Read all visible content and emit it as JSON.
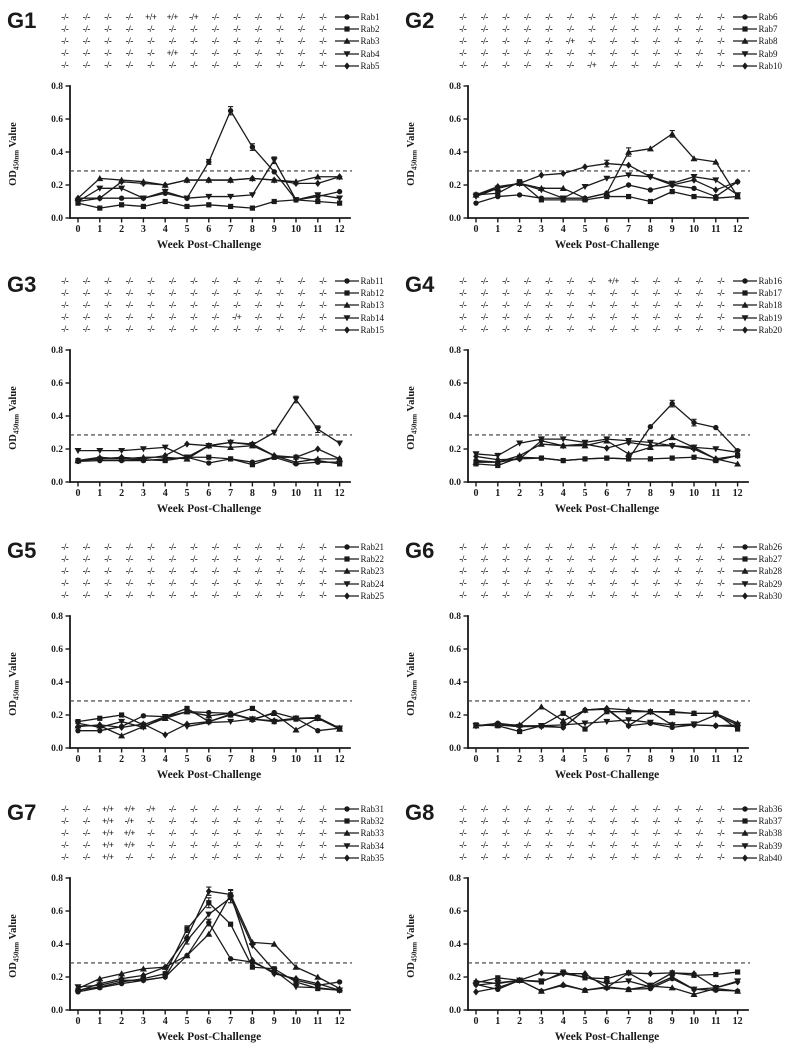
{
  "figure": {
    "background": "#ffffff",
    "ink": "#1a1a1a",
    "xlabel": "Week Post-Challenge",
    "ylabel_prefix": "OD",
    "ylabel_sub": "450nm",
    "ylabel_suffix": " Value",
    "ylim": [
      0,
      0.8
    ],
    "ytick_labels": [
      "0.0",
      "0.2",
      "0.4",
      "0.6",
      "0.8"
    ],
    "xtick_labels": [
      "0",
      "1",
      "2",
      "3",
      "4",
      "5",
      "6",
      "7",
      "8",
      "9",
      "10",
      "11",
      "12"
    ],
    "threshold": 0.285,
    "status_default": "-/-",
    "weeks": 13,
    "grid": "off",
    "legend_position": "right-of-status-rows"
  },
  "chart_data": [
    {
      "type": "line",
      "panel": "G1",
      "x": [
        0,
        1,
        2,
        3,
        4,
        5,
        6,
        7,
        8,
        9,
        10,
        11,
        12
      ],
      "series": [
        {
          "name": "Rab1",
          "marker": "circle",
          "status_marks": {
            "4": "+/+",
            "5": "+/+",
            "6": "-/+"
          },
          "values": [
            0.1,
            0.12,
            0.12,
            0.12,
            0.15,
            0.12,
            0.34,
            0.65,
            0.43,
            0.28,
            0.11,
            0.13,
            0.16
          ],
          "errors": {
            "6": 0.015,
            "7": 0.025,
            "8": 0.02
          }
        },
        {
          "name": "Rab2",
          "marker": "square",
          "status_marks": {},
          "values": [
            0.09,
            0.06,
            0.08,
            0.07,
            0.1,
            0.07,
            0.08,
            0.07,
            0.06,
            0.1,
            0.11,
            0.1,
            0.09
          ],
          "errors": {}
        },
        {
          "name": "Rab3",
          "marker": "triangle",
          "status_marks": {},
          "values": [
            0.12,
            0.24,
            0.23,
            0.22,
            0.2,
            0.23,
            0.23,
            0.23,
            0.24,
            0.23,
            0.22,
            0.25,
            0.25
          ],
          "errors": {}
        },
        {
          "name": "Rab4",
          "marker": "triangle-down",
          "status_marks": {
            "5": "+/+"
          },
          "values": [
            0.1,
            0.18,
            0.18,
            0.12,
            0.16,
            0.12,
            0.13,
            0.13,
            0.14,
            0.35,
            0.11,
            0.14,
            0.12
          ],
          "errors": {
            "9": 0.02
          }
        },
        {
          "name": "Rab5",
          "marker": "diamond",
          "status_marks": {},
          "values": [
            0.12,
            0.12,
            0.22,
            0.21,
            0.2,
            0.23,
            0.23,
            0.23,
            0.24,
            0.23,
            0.21,
            0.21,
            0.25
          ],
          "errors": {}
        }
      ]
    },
    {
      "type": "line",
      "panel": "G2",
      "x": [
        0,
        1,
        2,
        3,
        4,
        5,
        6,
        7,
        8,
        9,
        10,
        11,
        12
      ],
      "series": [
        {
          "name": "Rab6",
          "marker": "circle",
          "status_marks": {},
          "values": [
            0.09,
            0.13,
            0.14,
            0.12,
            0.12,
            0.12,
            0.15,
            0.2,
            0.17,
            0.2,
            0.18,
            0.13,
            0.22
          ],
          "errors": {}
        },
        {
          "name": "Rab7",
          "marker": "square",
          "status_marks": {},
          "values": [
            0.14,
            0.15,
            0.22,
            0.11,
            0.11,
            0.11,
            0.13,
            0.13,
            0.1,
            0.16,
            0.13,
            0.12,
            0.13
          ],
          "errors": {}
        },
        {
          "name": "Rab8",
          "marker": "triangle",
          "status_marks": {
            "5": "-/+"
          },
          "values": [
            0.14,
            0.18,
            0.21,
            0.18,
            0.18,
            0.12,
            0.15,
            0.4,
            0.42,
            0.51,
            0.36,
            0.34,
            0.13
          ],
          "errors": {
            "7": 0.025,
            "9": 0.02
          }
        },
        {
          "name": "Rab9",
          "marker": "triangle-down",
          "status_marks": {},
          "values": [
            0.13,
            0.18,
            0.21,
            0.17,
            0.12,
            0.19,
            0.24,
            0.26,
            0.25,
            0.21,
            0.25,
            0.23,
            0.14
          ],
          "errors": {}
        },
        {
          "name": "Rab10",
          "marker": "diamond",
          "status_marks": {
            "6": "-/+"
          },
          "values": [
            0.14,
            0.19,
            0.21,
            0.26,
            0.27,
            0.31,
            0.33,
            0.32,
            0.25,
            0.2,
            0.23,
            0.17,
            0.22
          ],
          "errors": {
            "6": 0.02
          }
        }
      ]
    },
    {
      "type": "line",
      "panel": "G3",
      "x": [
        0,
        1,
        2,
        3,
        4,
        5,
        6,
        7,
        8,
        9,
        10,
        11,
        12
      ],
      "series": [
        {
          "name": "Rab11",
          "marker": "circle",
          "status_marks": {},
          "values": [
            0.125,
            0.13,
            0.13,
            0.13,
            0.14,
            0.15,
            0.115,
            0.14,
            0.12,
            0.15,
            0.11,
            0.12,
            0.12
          ],
          "errors": {}
        },
        {
          "name": "Rab12",
          "marker": "square",
          "status_marks": {},
          "values": [
            0.13,
            0.14,
            0.14,
            0.135,
            0.13,
            0.15,
            0.15,
            0.14,
            0.105,
            0.15,
            0.15,
            0.13,
            0.11
          ],
          "errors": {}
        },
        {
          "name": "Rab13",
          "marker": "triangle",
          "status_marks": {},
          "values": [
            0.13,
            0.15,
            0.14,
            0.15,
            0.15,
            0.14,
            0.22,
            0.21,
            0.22,
            0.16,
            0.12,
            0.14,
            0.14
          ],
          "errors": {}
        },
        {
          "name": "Rab14",
          "marker": "triangle-down",
          "status_marks": {
            "8": "-/+"
          },
          "values": [
            0.19,
            0.19,
            0.19,
            0.2,
            0.21,
            0.15,
            0.22,
            0.24,
            0.225,
            0.3,
            0.5,
            0.32,
            0.235
          ],
          "errors": {
            "10": 0.02,
            "11": 0.02
          }
        },
        {
          "name": "Rab15",
          "marker": "diamond",
          "status_marks": {},
          "values": [
            0.13,
            0.14,
            0.15,
            0.14,
            0.16,
            0.23,
            0.22,
            0.24,
            0.23,
            0.16,
            0.15,
            0.2,
            0.14
          ],
          "errors": {}
        }
      ]
    },
    {
      "type": "line",
      "panel": "G4",
      "x": [
        0,
        1,
        2,
        3,
        4,
        5,
        6,
        7,
        8,
        9,
        10,
        11,
        12
      ],
      "series": [
        {
          "name": "Rab16",
          "marker": "circle",
          "status_marks": {
            "7": "+/+"
          },
          "values": [
            0.13,
            0.12,
            0.14,
            0.145,
            0.13,
            0.14,
            0.145,
            0.14,
            0.335,
            0.475,
            0.36,
            0.33,
            0.19
          ],
          "errors": {
            "9": 0.02,
            "10": 0.02
          }
        },
        {
          "name": "Rab17",
          "marker": "square",
          "status_marks": {},
          "values": [
            0.11,
            0.1,
            0.15,
            0.145,
            0.13,
            0.14,
            0.145,
            0.14,
            0.14,
            0.145,
            0.15,
            0.13,
            0.16
          ],
          "errors": {}
        },
        {
          "name": "Rab18",
          "marker": "triangle",
          "status_marks": {},
          "values": [
            0.12,
            0.12,
            0.16,
            0.23,
            0.22,
            0.22,
            0.25,
            0.17,
            0.21,
            0.27,
            0.21,
            0.14,
            0.11
          ],
          "errors": {}
        },
        {
          "name": "Rab19",
          "marker": "triangle-down",
          "status_marks": {},
          "values": [
            0.17,
            0.16,
            0.235,
            0.26,
            0.26,
            0.24,
            0.26,
            0.25,
            0.24,
            0.22,
            0.21,
            0.2,
            0.18
          ],
          "errors": {}
        },
        {
          "name": "Rab20",
          "marker": "diamond",
          "status_marks": {},
          "values": [
            0.155,
            0.135,
            0.14,
            0.25,
            0.22,
            0.23,
            0.205,
            0.24,
            0.22,
            0.22,
            0.2,
            0.14,
            0.16
          ],
          "errors": {}
        }
      ]
    },
    {
      "type": "line",
      "panel": "G5",
      "x": [
        0,
        1,
        2,
        3,
        4,
        5,
        6,
        7,
        8,
        9,
        10,
        11,
        12
      ],
      "series": [
        {
          "name": "Rab21",
          "marker": "circle",
          "status_marks": {},
          "values": [
            0.105,
            0.105,
            0.13,
            0.195,
            0.19,
            0.22,
            0.215,
            0.21,
            0.17,
            0.215,
            0.18,
            0.105,
            0.12
          ],
          "errors": {}
        },
        {
          "name": "Rab22",
          "marker": "square",
          "status_marks": {},
          "values": [
            0.16,
            0.18,
            0.2,
            0.14,
            0.19,
            0.24,
            0.16,
            0.2,
            0.24,
            0.16,
            0.175,
            0.185,
            0.12
          ],
          "errors": {}
        },
        {
          "name": "Rab23",
          "marker": "triangle",
          "status_marks": {},
          "values": [
            0.135,
            0.135,
            0.075,
            0.13,
            0.18,
            0.22,
            0.195,
            0.21,
            0.175,
            0.21,
            0.11,
            0.18,
            0.115
          ],
          "errors": {}
        },
        {
          "name": "Rab24",
          "marker": "triangle-down",
          "status_marks": {},
          "values": [
            0.15,
            0.125,
            0.16,
            0.125,
            0.19,
            0.13,
            0.155,
            0.16,
            0.175,
            0.16,
            0.18,
            0.18,
            0.12
          ],
          "errors": {}
        },
        {
          "name": "Rab25",
          "marker": "diamond",
          "status_marks": {},
          "values": [
            0.13,
            0.14,
            0.125,
            0.145,
            0.08,
            0.145,
            0.16,
            0.205,
            0.175,
            0.165,
            0.18,
            0.185,
            0.12
          ],
          "errors": {}
        }
      ]
    },
    {
      "type": "line",
      "panel": "G6",
      "x": [
        0,
        1,
        2,
        3,
        4,
        5,
        6,
        7,
        8,
        9,
        10,
        11,
        12
      ],
      "series": [
        {
          "name": "Rab26",
          "marker": "circle",
          "status_marks": {},
          "values": [
            0.135,
            0.15,
            0.135,
            0.135,
            0.125,
            0.23,
            0.235,
            0.135,
            0.15,
            0.125,
            0.14,
            0.135,
            0.14
          ],
          "errors": {}
        },
        {
          "name": "Rab27",
          "marker": "square",
          "status_marks": {},
          "values": [
            0.14,
            0.135,
            0.1,
            0.135,
            0.21,
            0.115,
            0.22,
            0.22,
            0.22,
            0.22,
            0.21,
            0.21,
            0.115
          ],
          "errors": {}
        },
        {
          "name": "Rab28",
          "marker": "triangle",
          "status_marks": {},
          "values": [
            0.135,
            0.14,
            0.14,
            0.25,
            0.165,
            0.23,
            0.24,
            0.23,
            0.22,
            0.215,
            0.21,
            0.21,
            0.15
          ],
          "errors": {}
        },
        {
          "name": "Rab29",
          "marker": "triangle-down",
          "status_marks": {},
          "values": [
            0.135,
            0.14,
            0.13,
            0.135,
            0.14,
            0.15,
            0.16,
            0.17,
            0.155,
            0.14,
            0.145,
            0.2,
            0.14
          ],
          "errors": {}
        },
        {
          "name": "Rab30",
          "marker": "diamond",
          "status_marks": {},
          "values": [
            0.135,
            0.14,
            0.13,
            0.13,
            0.125,
            0.23,
            0.24,
            0.135,
            0.22,
            0.14,
            0.14,
            0.135,
            0.13
          ],
          "errors": {}
        }
      ]
    },
    {
      "type": "line",
      "panel": "G7",
      "x": [
        0,
        1,
        2,
        3,
        4,
        5,
        6,
        7,
        8,
        9,
        10,
        11,
        12
      ],
      "series": [
        {
          "name": "Rab31",
          "marker": "circle",
          "status_marks": {
            "2": "+/+",
            "3": "+/+",
            "4": "-/+"
          },
          "values": [
            0.11,
            0.135,
            0.16,
            0.18,
            0.2,
            0.33,
            0.53,
            0.31,
            0.29,
            0.23,
            0.18,
            0.15,
            0.17
          ],
          "errors": {
            "6": 0.02
          }
        },
        {
          "name": "Rab32",
          "marker": "square",
          "status_marks": {
            "2": "+/+",
            "3": "-/+"
          },
          "values": [
            0.12,
            0.14,
            0.17,
            0.19,
            0.22,
            0.49,
            0.65,
            0.52,
            0.26,
            0.25,
            0.17,
            0.13,
            0.12
          ],
          "errors": {
            "5": 0.02,
            "6": 0.03
          }
        },
        {
          "name": "Rab33",
          "marker": "triangle",
          "status_marks": {
            "2": "+/+",
            "3": "+/+"
          },
          "values": [
            0.13,
            0.19,
            0.22,
            0.25,
            0.26,
            0.33,
            0.46,
            0.7,
            0.41,
            0.4,
            0.26,
            0.2,
            0.13
          ],
          "errors": {
            "7": 0.03
          }
        },
        {
          "name": "Rab34",
          "marker": "triangle-down",
          "status_marks": {
            "2": "+/+",
            "3": "+/+"
          },
          "values": [
            0.14,
            0.15,
            0.18,
            0.18,
            0.2,
            0.42,
            0.58,
            0.68,
            0.39,
            0.24,
            0.14,
            0.135,
            0.12
          ],
          "errors": {
            "5": 0.02,
            "7": 0.03
          }
        },
        {
          "name": "Rab35",
          "marker": "diamond",
          "status_marks": {
            "2": "+/+"
          },
          "values": [
            0.115,
            0.16,
            0.19,
            0.21,
            0.26,
            0.44,
            0.72,
            0.7,
            0.3,
            0.22,
            0.19,
            0.16,
            0.12
          ],
          "errors": {
            "6": 0.025,
            "7": 0.025
          }
        }
      ]
    },
    {
      "type": "line",
      "panel": "G8",
      "x": [
        0,
        1,
        2,
        3,
        4,
        5,
        6,
        7,
        8,
        9,
        10,
        11,
        12
      ],
      "series": [
        {
          "name": "Rab36",
          "marker": "circle",
          "status_marks": {},
          "values": [
            0.155,
            0.125,
            0.18,
            0.115,
            0.15,
            0.12,
            0.135,
            0.125,
            0.13,
            0.19,
            0.125,
            0.12,
            0.115
          ],
          "errors": {}
        },
        {
          "name": "Rab37",
          "marker": "square",
          "status_marks": {},
          "values": [
            0.165,
            0.195,
            0.18,
            0.17,
            0.23,
            0.195,
            0.19,
            0.225,
            0.15,
            0.225,
            0.21,
            0.215,
            0.23
          ],
          "errors": {}
        },
        {
          "name": "Rab38",
          "marker": "triangle",
          "status_marks": {},
          "values": [
            0.175,
            0.16,
            0.18,
            0.115,
            0.155,
            0.12,
            0.14,
            0.125,
            0.145,
            0.135,
            0.095,
            0.13,
            0.115
          ],
          "errors": {}
        },
        {
          "name": "Rab39",
          "marker": "triangle-down",
          "status_marks": {},
          "values": [
            0.15,
            0.165,
            0.18,
            0.175,
            0.22,
            0.2,
            0.16,
            0.175,
            0.14,
            0.2,
            0.125,
            0.135,
            0.175
          ],
          "errors": {}
        },
        {
          "name": "Rab40",
          "marker": "diamond",
          "status_marks": {},
          "values": [
            0.11,
            0.135,
            0.18,
            0.225,
            0.22,
            0.22,
            0.135,
            0.225,
            0.22,
            0.225,
            0.22,
            0.135,
            0.17
          ],
          "errors": {}
        }
      ]
    }
  ]
}
